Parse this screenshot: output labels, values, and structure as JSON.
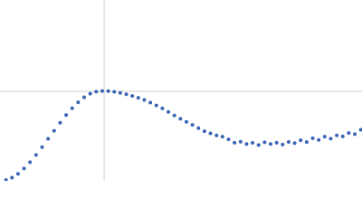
{
  "chart_data": {
    "type": "scatter",
    "color": "#3a66b5",
    "grid": true,
    "xlim": [
      0,
      6.02
    ],
    "ylim": [
      0,
      2.23
    ],
    "xticks": [
      1.732
    ],
    "yticks": [
      1.104
    ],
    "x": [
      0.1,
      0.2,
      0.3,
      0.4,
      0.5,
      0.6,
      0.7,
      0.8,
      0.9,
      1.0,
      1.1,
      1.2,
      1.3,
      1.4,
      1.5,
      1.6,
      1.7,
      1.8,
      1.9,
      2.0,
      2.1,
      2.2,
      2.3,
      2.4,
      2.5,
      2.6,
      2.7,
      2.8,
      2.9,
      3.0,
      3.1,
      3.2,
      3.3,
      3.4,
      3.5,
      3.6,
      3.7,
      3.8,
      3.9,
      4.0,
      4.1,
      4.2,
      4.3,
      4.4,
      4.5,
      4.6,
      4.7,
      4.8,
      4.9,
      5.0,
      5.1,
      5.2,
      5.3,
      5.4,
      5.5,
      5.6,
      5.7,
      5.8,
      5.9,
      6.0
    ],
    "values": [
      0.01,
      0.039,
      0.087,
      0.152,
      0.23,
      0.319,
      0.416,
      0.518,
      0.618,
      0.717,
      0.811,
      0.895,
      0.969,
      1.03,
      1.074,
      1.1,
      1.108,
      1.106,
      1.098,
      1.085,
      1.068,
      1.047,
      1.025,
      0.998,
      0.965,
      0.93,
      0.893,
      0.85,
      0.805,
      0.765,
      0.728,
      0.69,
      0.65,
      0.612,
      0.585,
      0.56,
      0.545,
      0.512,
      0.47,
      0.482,
      0.455,
      0.468,
      0.442,
      0.475,
      0.455,
      0.47,
      0.448,
      0.48,
      0.465,
      0.5,
      0.478,
      0.525,
      0.505,
      0.545,
      0.52,
      0.56,
      0.548,
      0.59,
      0.575,
      0.63
    ]
  }
}
